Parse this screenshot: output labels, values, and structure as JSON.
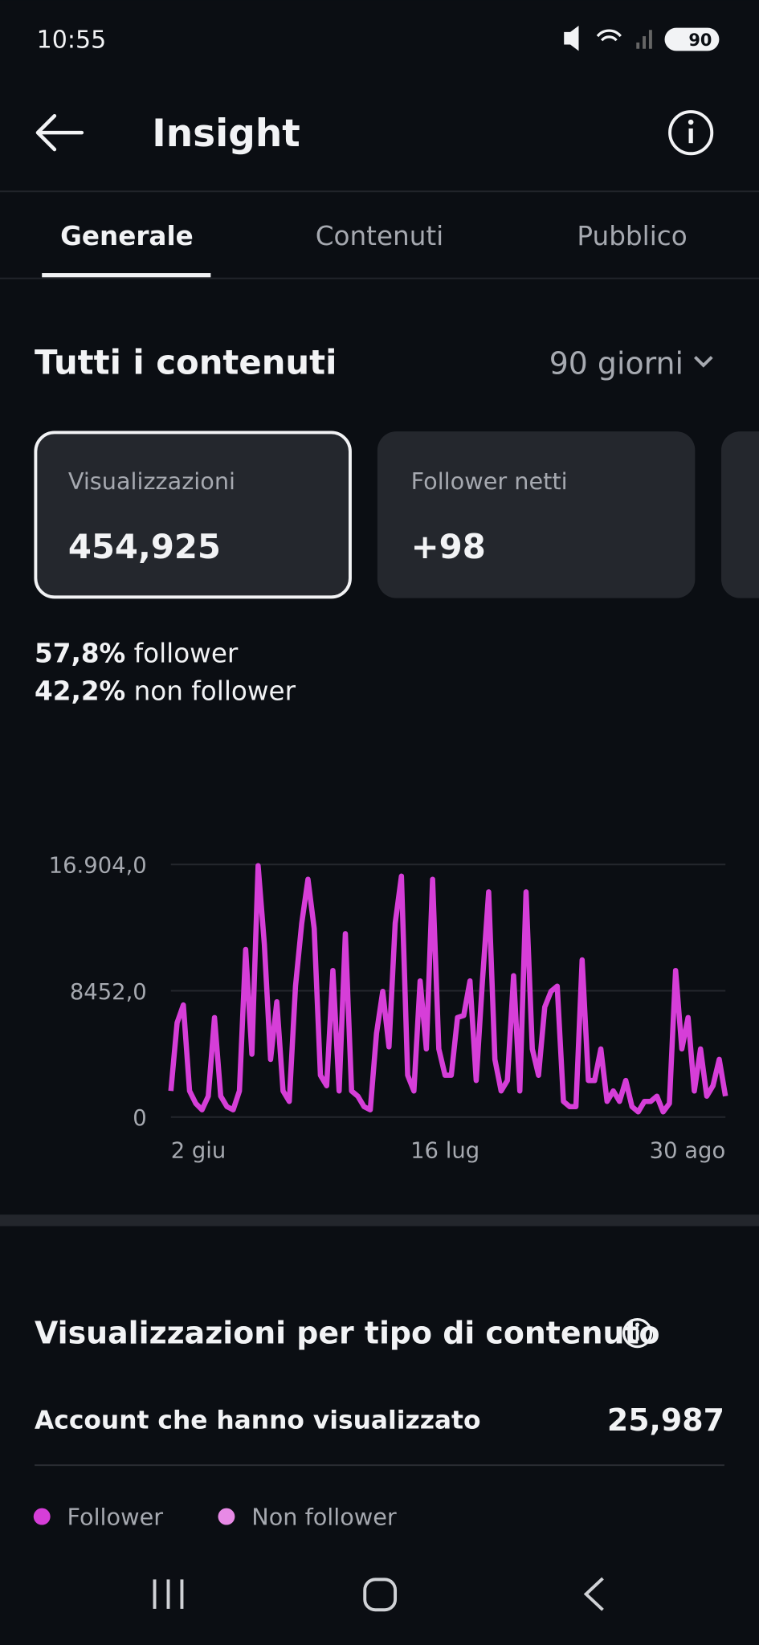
{
  "status_bar": {
    "time": "10:55",
    "battery": "90"
  },
  "header": {
    "title": "Insight"
  },
  "tabs": [
    "Generale",
    "Contenuti",
    "Pubblico"
  ],
  "section": {
    "title": "Tutti i contenuti",
    "period": "90 giorni"
  },
  "cards": [
    {
      "label": "Visualizzazioni",
      "value": "454,925"
    },
    {
      "label": "Follower netti",
      "value": "+98"
    }
  ],
  "split": [
    {
      "value": "57,8%",
      "label": "follower"
    },
    {
      "value": "42,2%",
      "label": "non follower"
    }
  ],
  "chart_data": {
    "type": "line",
    "categories": [
      "2 giu",
      null,
      null,
      null,
      null,
      null,
      null,
      null,
      null,
      null,
      null,
      null,
      null,
      null,
      null,
      null,
      null,
      null,
      null,
      null,
      null,
      null,
      null,
      null,
      null,
      null,
      null,
      null,
      null,
      null,
      null,
      null,
      null,
      null,
      null,
      null,
      null,
      null,
      null,
      null,
      null,
      null,
      null,
      null,
      "16 lug",
      null,
      null,
      null,
      null,
      null,
      null,
      null,
      null,
      null,
      null,
      null,
      null,
      null,
      null,
      null,
      null,
      null,
      null,
      null,
      null,
      null,
      null,
      null,
      null,
      null,
      null,
      null,
      null,
      null,
      null,
      null,
      null,
      null,
      null,
      null,
      null,
      null,
      null,
      null,
      null,
      null,
      null,
      null,
      null,
      "30 ago"
    ],
    "series": [
      {
        "color": "#d63ed8",
        "values": [
          1750,
          6310,
          7500,
          1750,
          910,
          490,
          1400,
          6660,
          1400,
          700,
          490,
          1750,
          11220,
          4210,
          16820,
          11570,
          3860,
          7710,
          1750,
          1050,
          8760,
          12970,
          15910,
          12620,
          2800,
          2100,
          9810,
          1750,
          12270,
          1750,
          1400,
          700,
          490,
          5610,
          8410,
          4700,
          12970,
          16120,
          2800,
          1750,
          9110,
          4560,
          15910,
          4560,
          2800,
          2800,
          6660,
          6800,
          9110,
          2450,
          9110,
          15070,
          3860,
          1750,
          2450,
          9460,
          1750,
          15070,
          4560,
          2800,
          7360,
          8410,
          8760,
          1050,
          700,
          700,
          10520,
          2450,
          2450,
          4560,
          1050,
          1750,
          1050,
          2450,
          700,
          350,
          1050,
          1050,
          1400,
          350,
          910,
          9810,
          4560,
          6660,
          1750,
          4560,
          1400,
          2100,
          3860,
          1400
        ]
      }
    ],
    "ylim": [
      0,
      16904
    ],
    "yticks": [
      0,
      {
        "value": 8452,
        "label": "8452,0"
      },
      {
        "value": 16904,
        "label": "16.904,0"
      }
    ],
    "grid": true
  },
  "content_type": {
    "title": "Visualizzazioni per tipo di contenuto",
    "row_label": "Account che hanno visualizzato",
    "row_value": "25,987"
  },
  "legend": [
    {
      "name": "Follower",
      "color": "#d63ed8"
    },
    {
      "name": "Non follower",
      "color": "#e88ae6"
    }
  ]
}
